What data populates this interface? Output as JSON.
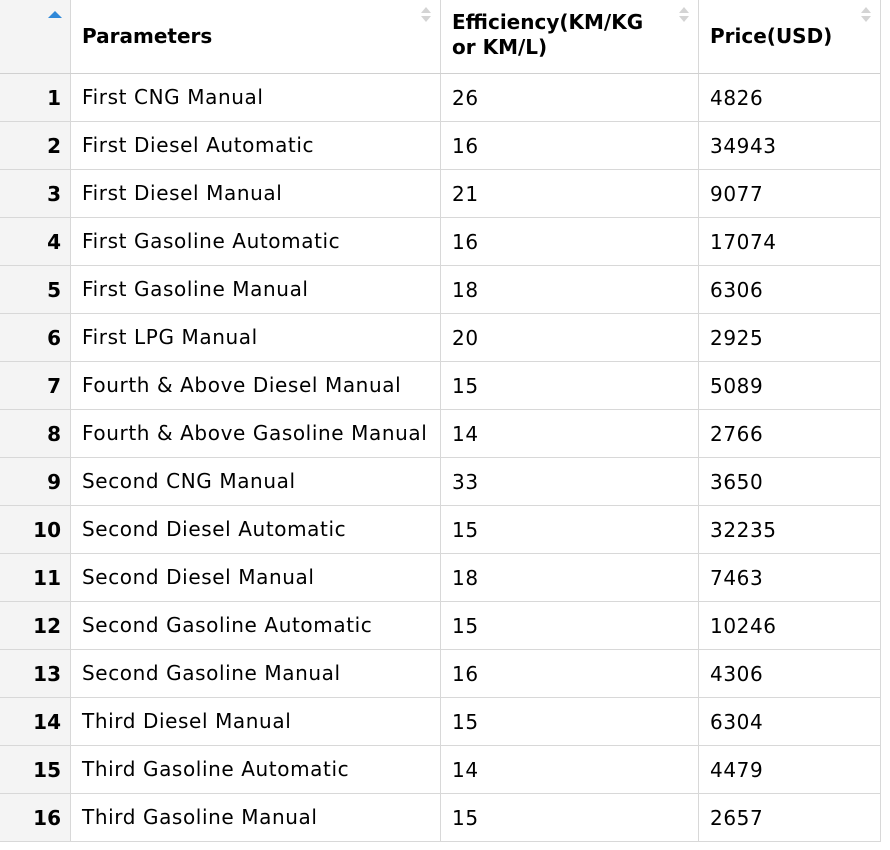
{
  "table": {
    "columns": [
      "",
      "Parameters",
      "Efficiency(KM/KG or KM/L)",
      "Price(USD)"
    ],
    "efficiency_header_lines": [
      "Efficiency(KM/KG",
      "or KM/L)"
    ],
    "rows": [
      {
        "index": "1",
        "parameters": "First CNG Manual",
        "efficiency": "26",
        "price": "4826"
      },
      {
        "index": "2",
        "parameters": "First Diesel Automatic",
        "efficiency": "16",
        "price": "34943"
      },
      {
        "index": "3",
        "parameters": "First Diesel Manual",
        "efficiency": "21",
        "price": "9077"
      },
      {
        "index": "4",
        "parameters": "First Gasoline Automatic",
        "efficiency": "16",
        "price": "17074"
      },
      {
        "index": "5",
        "parameters": "First Gasoline Manual",
        "efficiency": "18",
        "price": "6306"
      },
      {
        "index": "6",
        "parameters": "First LPG Manual",
        "efficiency": "20",
        "price": "2925"
      },
      {
        "index": "7",
        "parameters": "Fourth & Above Diesel Manual",
        "efficiency": "15",
        "price": "5089"
      },
      {
        "index": "8",
        "parameters": "Fourth & Above Gasoline Manual",
        "efficiency": "14",
        "price": "2766"
      },
      {
        "index": "9",
        "parameters": "Second CNG Manual",
        "efficiency": "33",
        "price": "3650"
      },
      {
        "index": "10",
        "parameters": "Second Diesel Automatic",
        "efficiency": "15",
        "price": "32235"
      },
      {
        "index": "11",
        "parameters": "Second Diesel Manual",
        "efficiency": "18",
        "price": "7463"
      },
      {
        "index": "12",
        "parameters": "Second Gasoline Automatic",
        "efficiency": "15",
        "price": "10246"
      },
      {
        "index": "13",
        "parameters": "Second Gasoline Manual",
        "efficiency": "16",
        "price": "4306"
      },
      {
        "index": "14",
        "parameters": "Third Diesel Manual",
        "efficiency": "15",
        "price": "6304"
      },
      {
        "index": "15",
        "parameters": "Third Gasoline Automatic",
        "efficiency": "14",
        "price": "4479"
      },
      {
        "index": "16",
        "parameters": "Third Gasoline Manual",
        "efficiency": "15",
        "price": "2657"
      }
    ],
    "sort_active_color": "#2f88d8",
    "sort_icon_names": [
      "sort-ascending-icon",
      "sort-toggle-icon"
    ]
  }
}
